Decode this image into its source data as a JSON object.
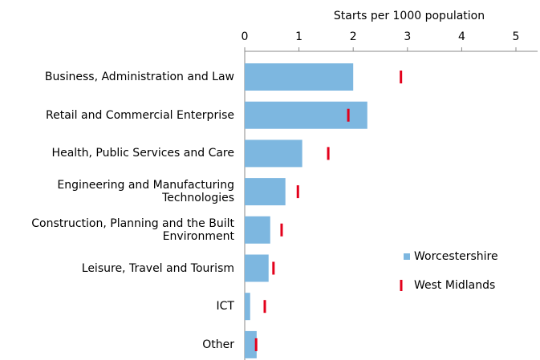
{
  "chart_data": {
    "type": "bar",
    "x_label": "Starts per 1000 population",
    "categories": [
      "Business, Administration and Law",
      "Retail and Commercial Enterprise",
      "Health, Public Services and Care",
      "Engineering and Manufacturing Technologies",
      "Construction, Planning and the Built Environment",
      "Leisure, Travel and Tourism",
      "ICT",
      "Other"
    ],
    "series": [
      {
        "name": "Worcestershire",
        "color": "#7db7e0",
        "values": [
          2.0,
          2.26,
          1.06,
          0.75,
          0.47,
          0.44,
          0.1,
          0.22
        ]
      },
      {
        "name": "West Midlands",
        "color": "#e3001b",
        "marker": "line",
        "values": [
          2.88,
          1.91,
          1.54,
          0.98,
          0.68,
          0.53,
          0.37,
          0.21
        ]
      }
    ],
    "xlim": [
      0,
      5.4
    ],
    "xticks": [
      0,
      1,
      2,
      3,
      4,
      5
    ],
    "legend": "right"
  }
}
